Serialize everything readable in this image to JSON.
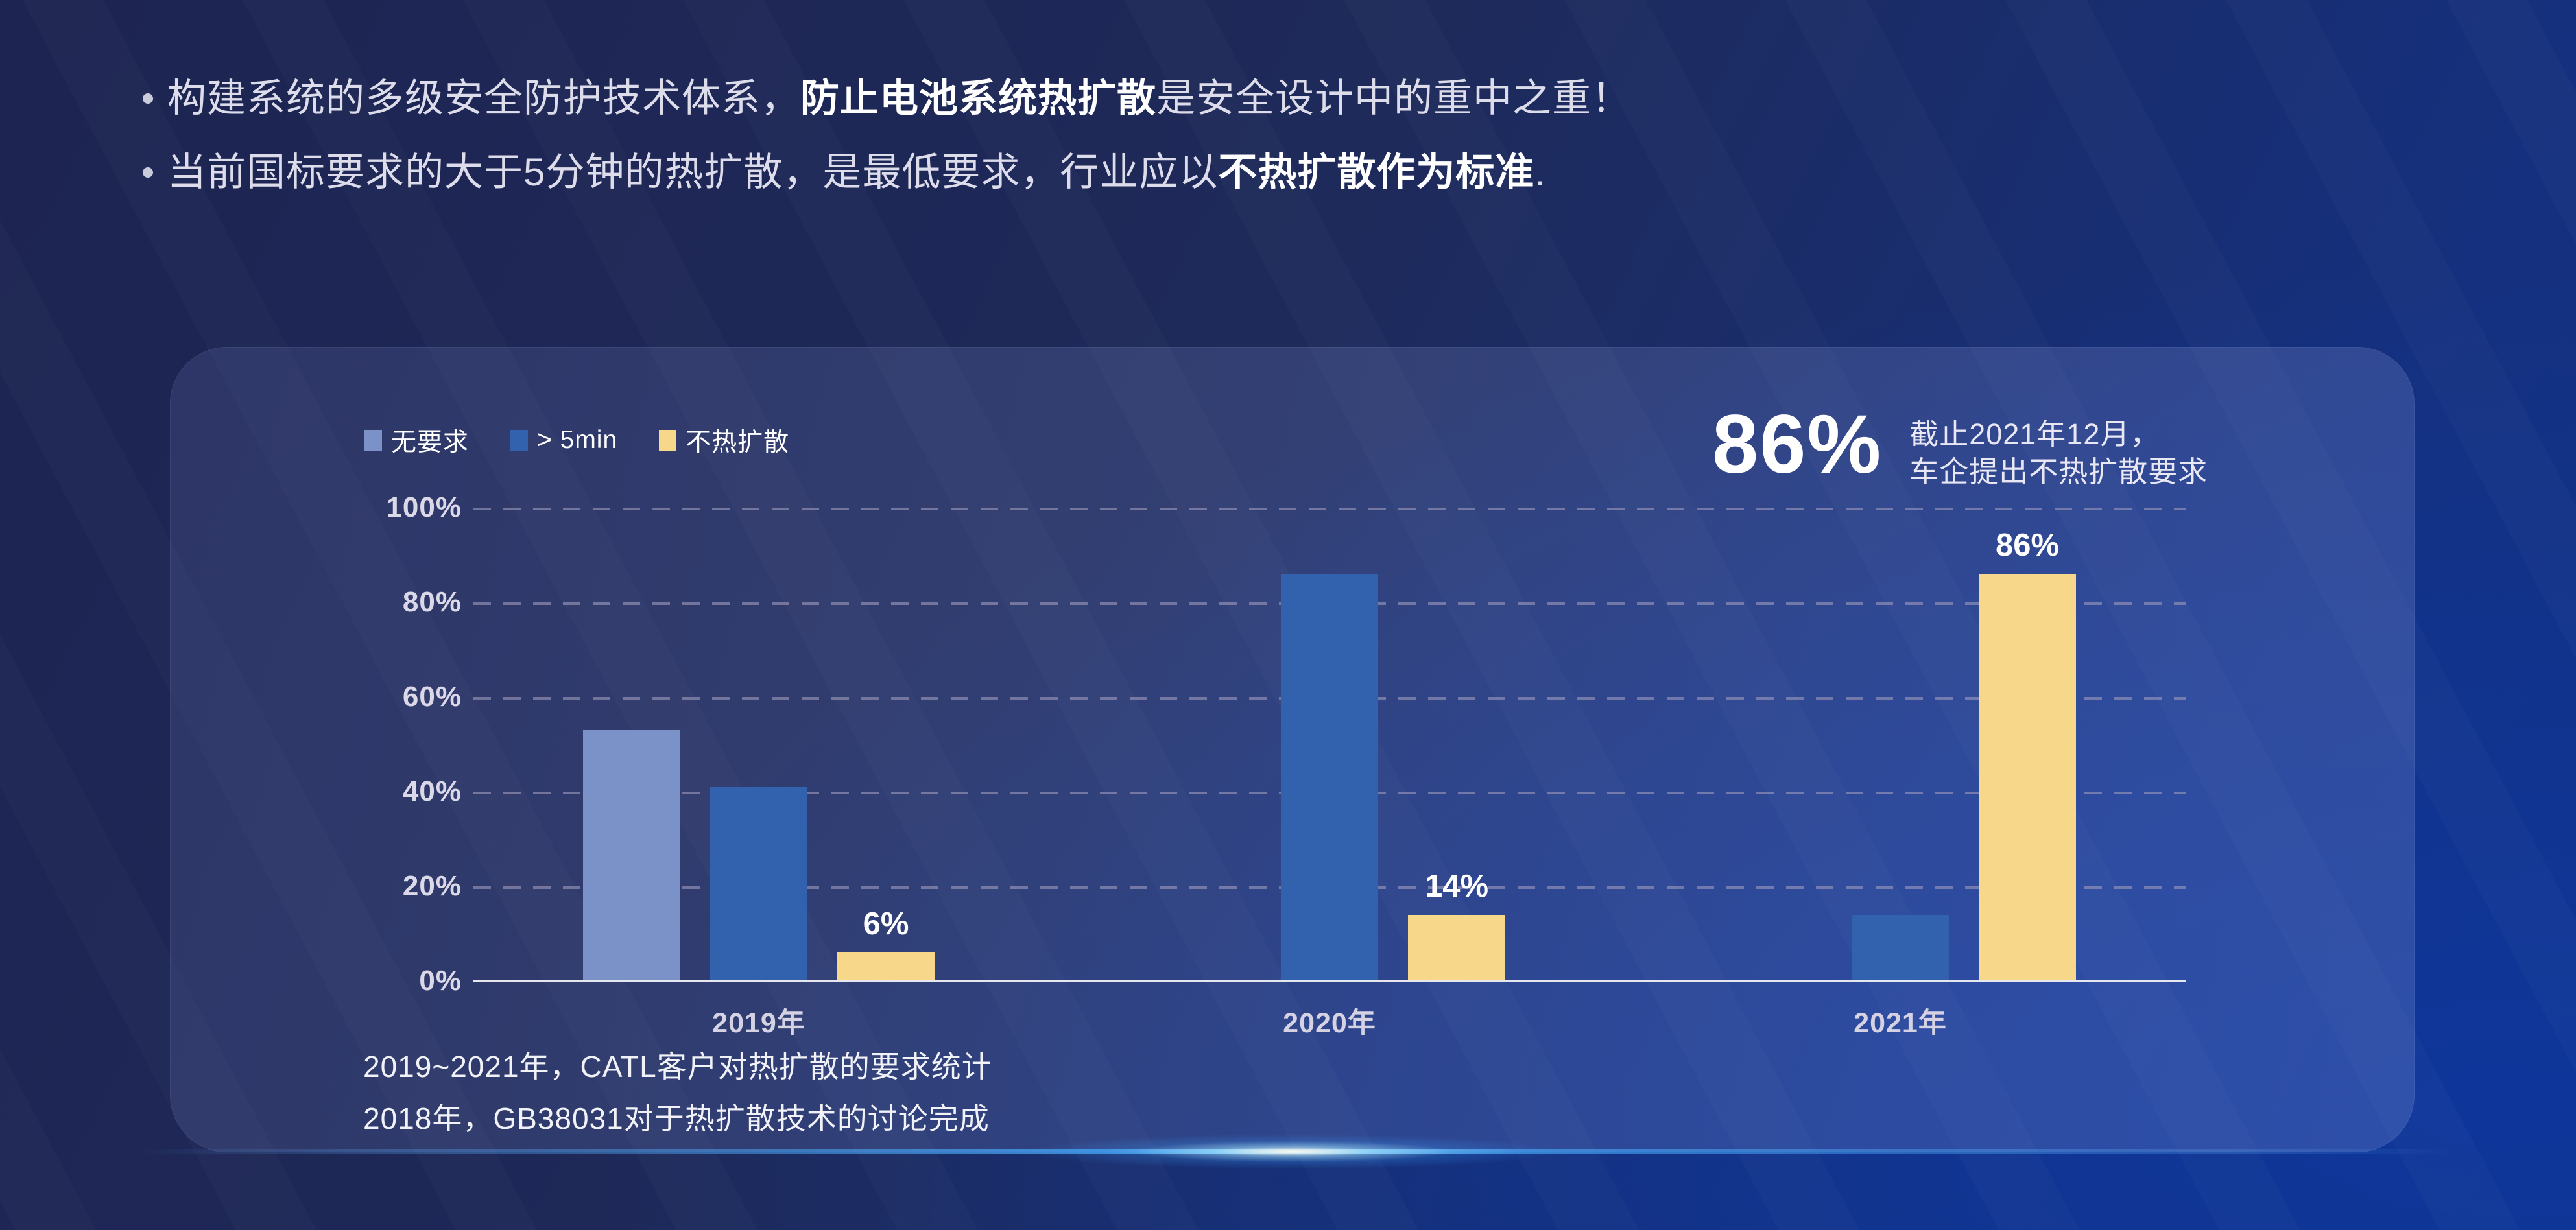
{
  "bullets": [
    {
      "marker": "•",
      "pre": "构建系统的多级安全防护技术体系，",
      "bold": "防止电池系统热扩散",
      "post": "是安全设计中的重中之重！"
    },
    {
      "marker": "•",
      "pre": "当前国标要求的大于5分钟的热扩散，是最低要求，行业应以",
      "bold": "不热扩散作为标准",
      "post": "."
    }
  ],
  "panel": {
    "highlight": {
      "value": "86%",
      "desc_line1": "截止2021年12月，",
      "desc_line2": "车企提出不热扩散要求"
    },
    "notes": [
      "2019~2021年，CATL客户对热扩散的要求统计",
      "2018年，GB38031对于热扩散技术的讨论完成"
    ]
  },
  "chart_data": {
    "type": "bar",
    "title": "CATL客户对热扩散的要求统计 2019-2021",
    "categories": [
      "2019年",
      "2020年",
      "2021年"
    ],
    "series": [
      {
        "name": "无要求",
        "color": "#7b92c9",
        "values": [
          53,
          0,
          0
        ],
        "labels": [
          "",
          "",
          ""
        ]
      },
      {
        "name": "> 5min",
        "color": "#3261ae",
        "values": [
          41,
          86,
          14
        ],
        "labels": [
          "",
          "",
          ""
        ]
      },
      {
        "name": "不热扩散",
        "color": "#f7d88b",
        "values": [
          6,
          14,
          86
        ],
        "labels": [
          "6%",
          "14%",
          "86%"
        ]
      }
    ],
    "yticks": [
      "100%",
      "80%",
      "60%",
      "40%",
      "20%",
      "0%"
    ],
    "ylim": [
      0,
      100
    ],
    "grid": "horizontal-dashed",
    "legend_position": "top-left",
    "xlabel": "",
    "ylabel": ""
  }
}
